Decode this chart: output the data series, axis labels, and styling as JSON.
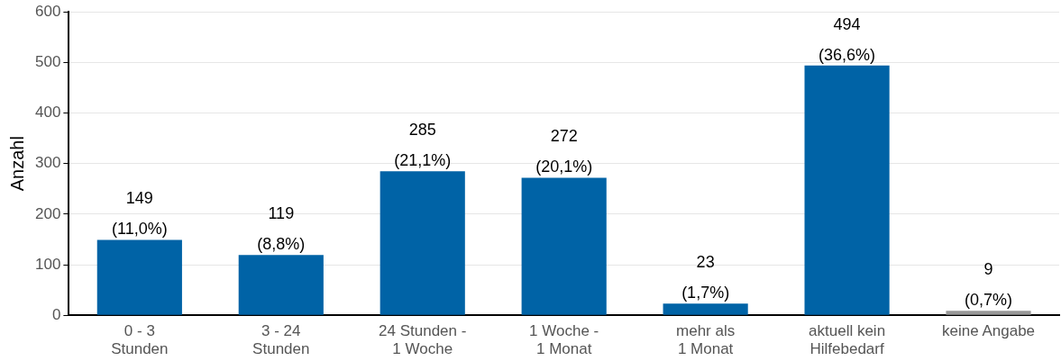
{
  "chart_data": {
    "type": "bar",
    "ylabel": "Anzahl",
    "categories": [
      "0 - 3\nStunden",
      "3 - 24\nStunden",
      "24 Stunden -\n1 Woche",
      "1 Woche -\n1 Monat",
      "mehr als\n1 Monat",
      "aktuell kein\nHilfebedarf",
      "keine Angabe"
    ],
    "values": [
      149,
      119,
      285,
      272,
      23,
      494,
      9
    ],
    "colors": [
      "#0063a6",
      "#0063a6",
      "#0063a6",
      "#0063a6",
      "#0063a6",
      "#0063a6",
      "#999999"
    ],
    "value_labels": [
      "149\n(11,0%)",
      "119\n(8,8%)",
      "285\n(21,1%)",
      "272\n(20,1%)",
      "23\n(1,7%)",
      "494\n(36,6%)",
      "9\n(0,7%)"
    ],
    "ylim": [
      0,
      600
    ],
    "yticks": [
      0,
      100,
      200,
      300,
      400,
      500,
      600
    ],
    "grid": "y",
    "legend": false
  }
}
